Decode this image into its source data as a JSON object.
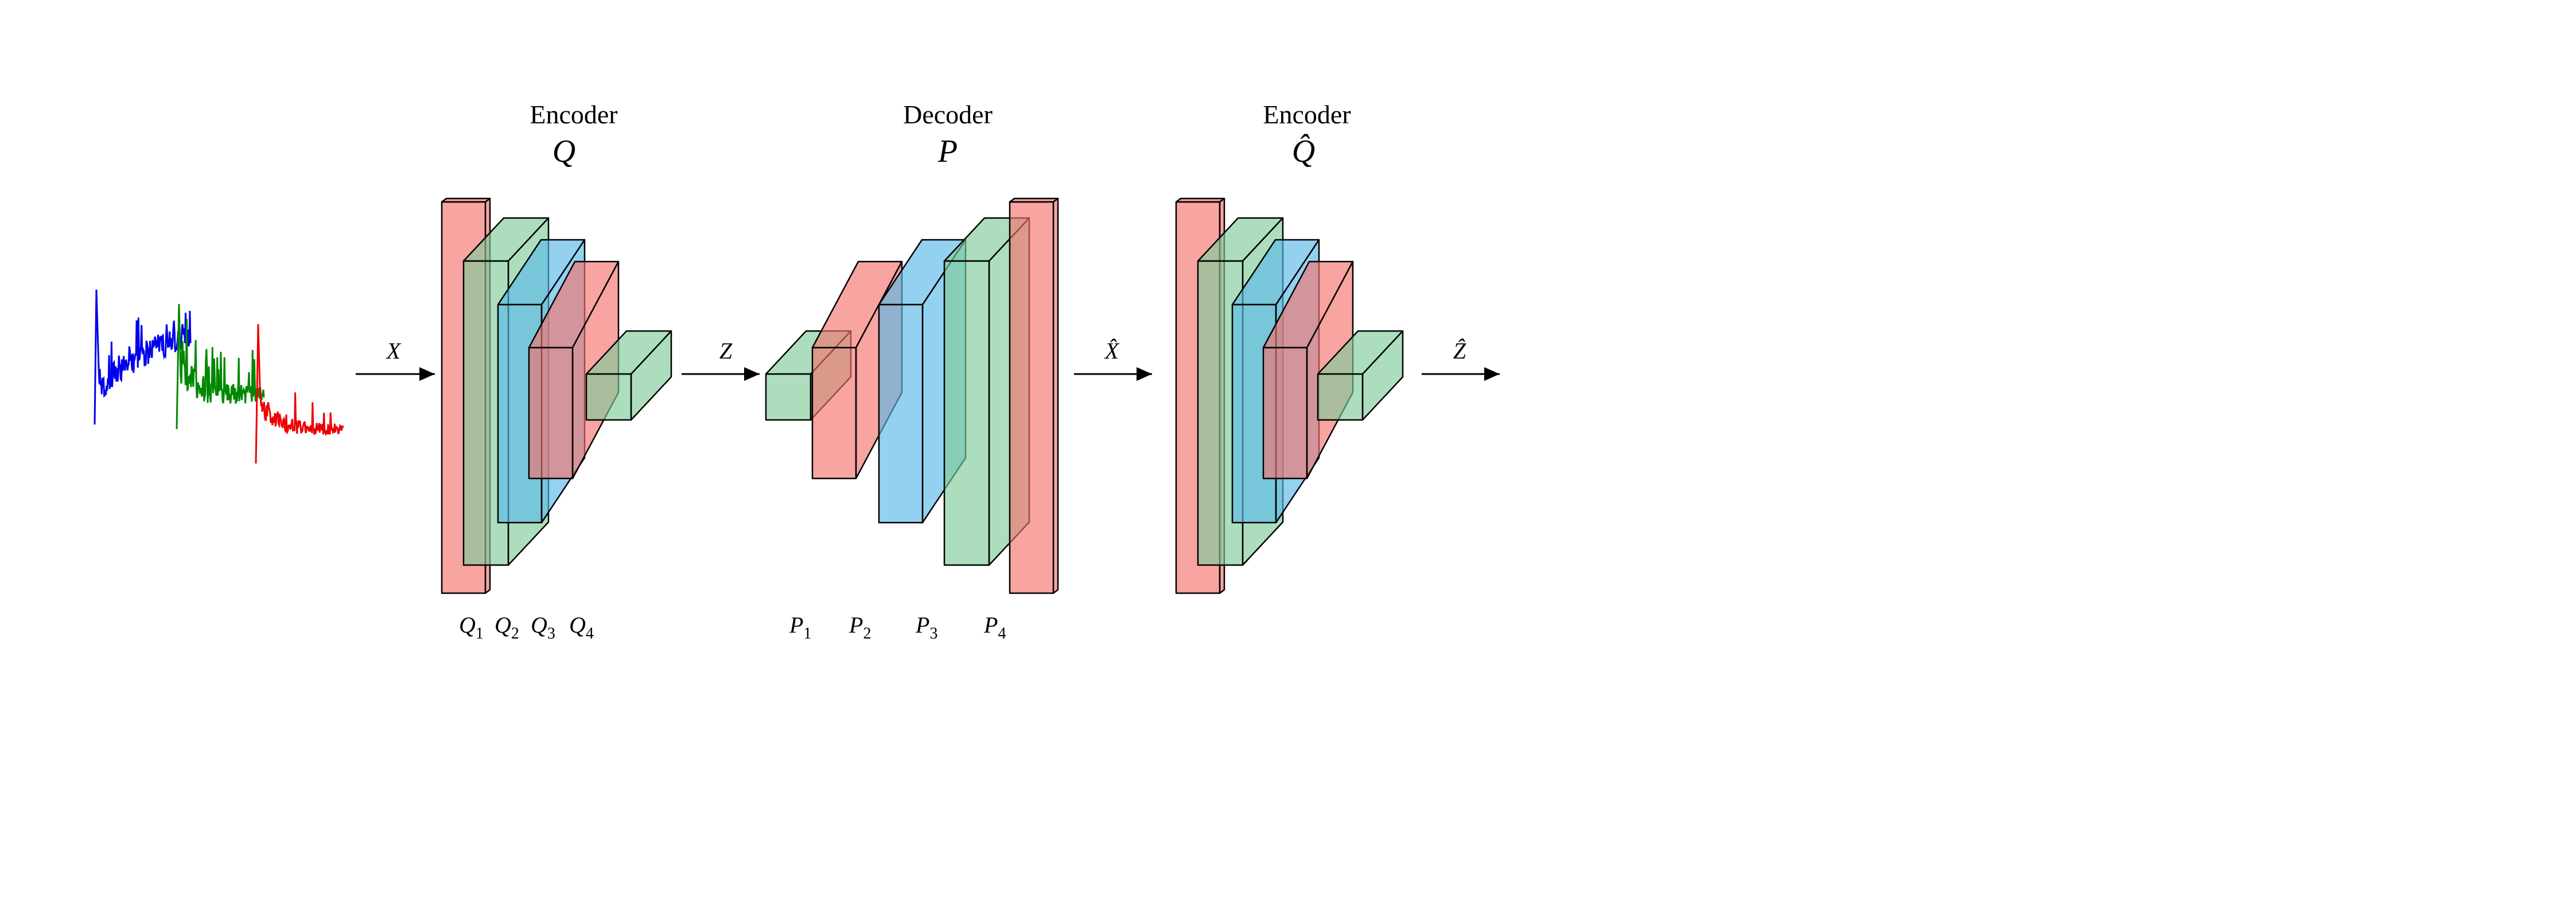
{
  "colors": {
    "red": "#f5736f",
    "green": "#7fcc9b",
    "blue": "#5bb8e8",
    "signal_blue": "#0000ee",
    "signal_green": "#008800",
    "signal_red": "#ee0000",
    "stroke": "#000000"
  },
  "encoder1": {
    "title": "Encoder",
    "symbol": "Q"
  },
  "decoder": {
    "title": "Decoder",
    "symbol": "P"
  },
  "encoder2": {
    "title": "Encoder",
    "symbol": "Q̂"
  },
  "arrows": {
    "x": "X",
    "z": "Z",
    "xhat": "X̂",
    "zhat": "Ẑ"
  },
  "encoder_layers": [
    {
      "base": "Q",
      "sub": "1"
    },
    {
      "base": "Q",
      "sub": "2"
    },
    {
      "base": "Q",
      "sub": "3"
    },
    {
      "base": "Q",
      "sub": "4"
    }
  ],
  "decoder_layers": [
    {
      "base": "P",
      "sub": "1"
    },
    {
      "base": "P",
      "sub": "2"
    },
    {
      "base": "P",
      "sub": "3"
    },
    {
      "base": "P",
      "sub": "4"
    }
  ]
}
